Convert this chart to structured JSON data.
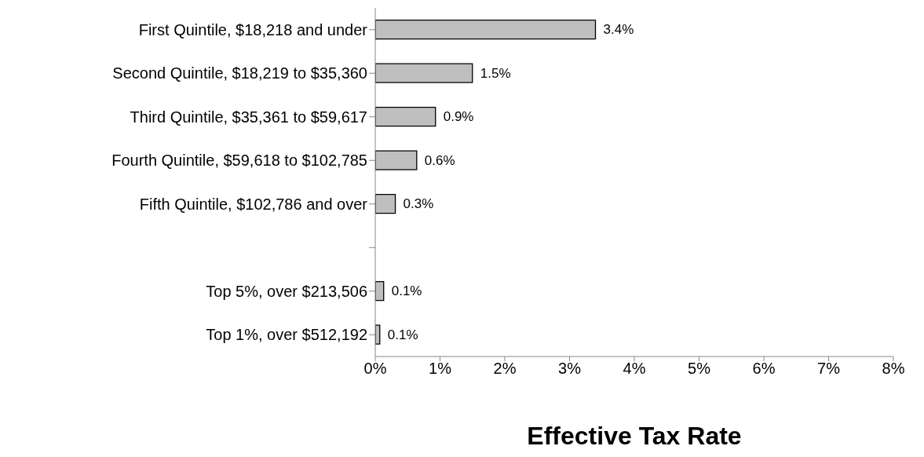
{
  "chart_data": {
    "type": "bar",
    "orientation": "horizontal",
    "xlabel": "Effective Tax Rate",
    "categories": [
      "First Quintile, $18,218 and under",
      "Second Quintile, $18,219 to $35,360",
      "Third Quintile, $35,361 to $59,617",
      "Fourth Quintile, $59,618 to $102,785",
      "Fifth Quintile, $102,786 and over",
      null,
      "Top 5%, over $213,506",
      "Top 1%, over $512,192"
    ],
    "values": [
      3.4,
      1.5,
      0.93,
      0.64,
      0.31,
      null,
      0.13,
      0.07
    ],
    "value_labels": [
      "3.4%",
      "1.5%",
      "0.9%",
      "0.6%",
      "0.3%",
      null,
      "0.1%",
      "0.1%"
    ],
    "color": "#bfbfbf",
    "xlim": [
      0,
      8
    ],
    "xticks": [
      {
        "value": 0,
        "label": "0%"
      },
      {
        "value": 1,
        "label": "1%"
      },
      {
        "value": 2,
        "label": "2%"
      },
      {
        "value": 3,
        "label": "3%"
      },
      {
        "value": 4,
        "label": "4%"
      },
      {
        "value": 5,
        "label": "5%"
      },
      {
        "value": 6,
        "label": "6%"
      },
      {
        "value": 7,
        "label": "7%"
      },
      {
        "value": 8,
        "label": "8%"
      }
    ],
    "grid": false,
    "legend": false
  }
}
